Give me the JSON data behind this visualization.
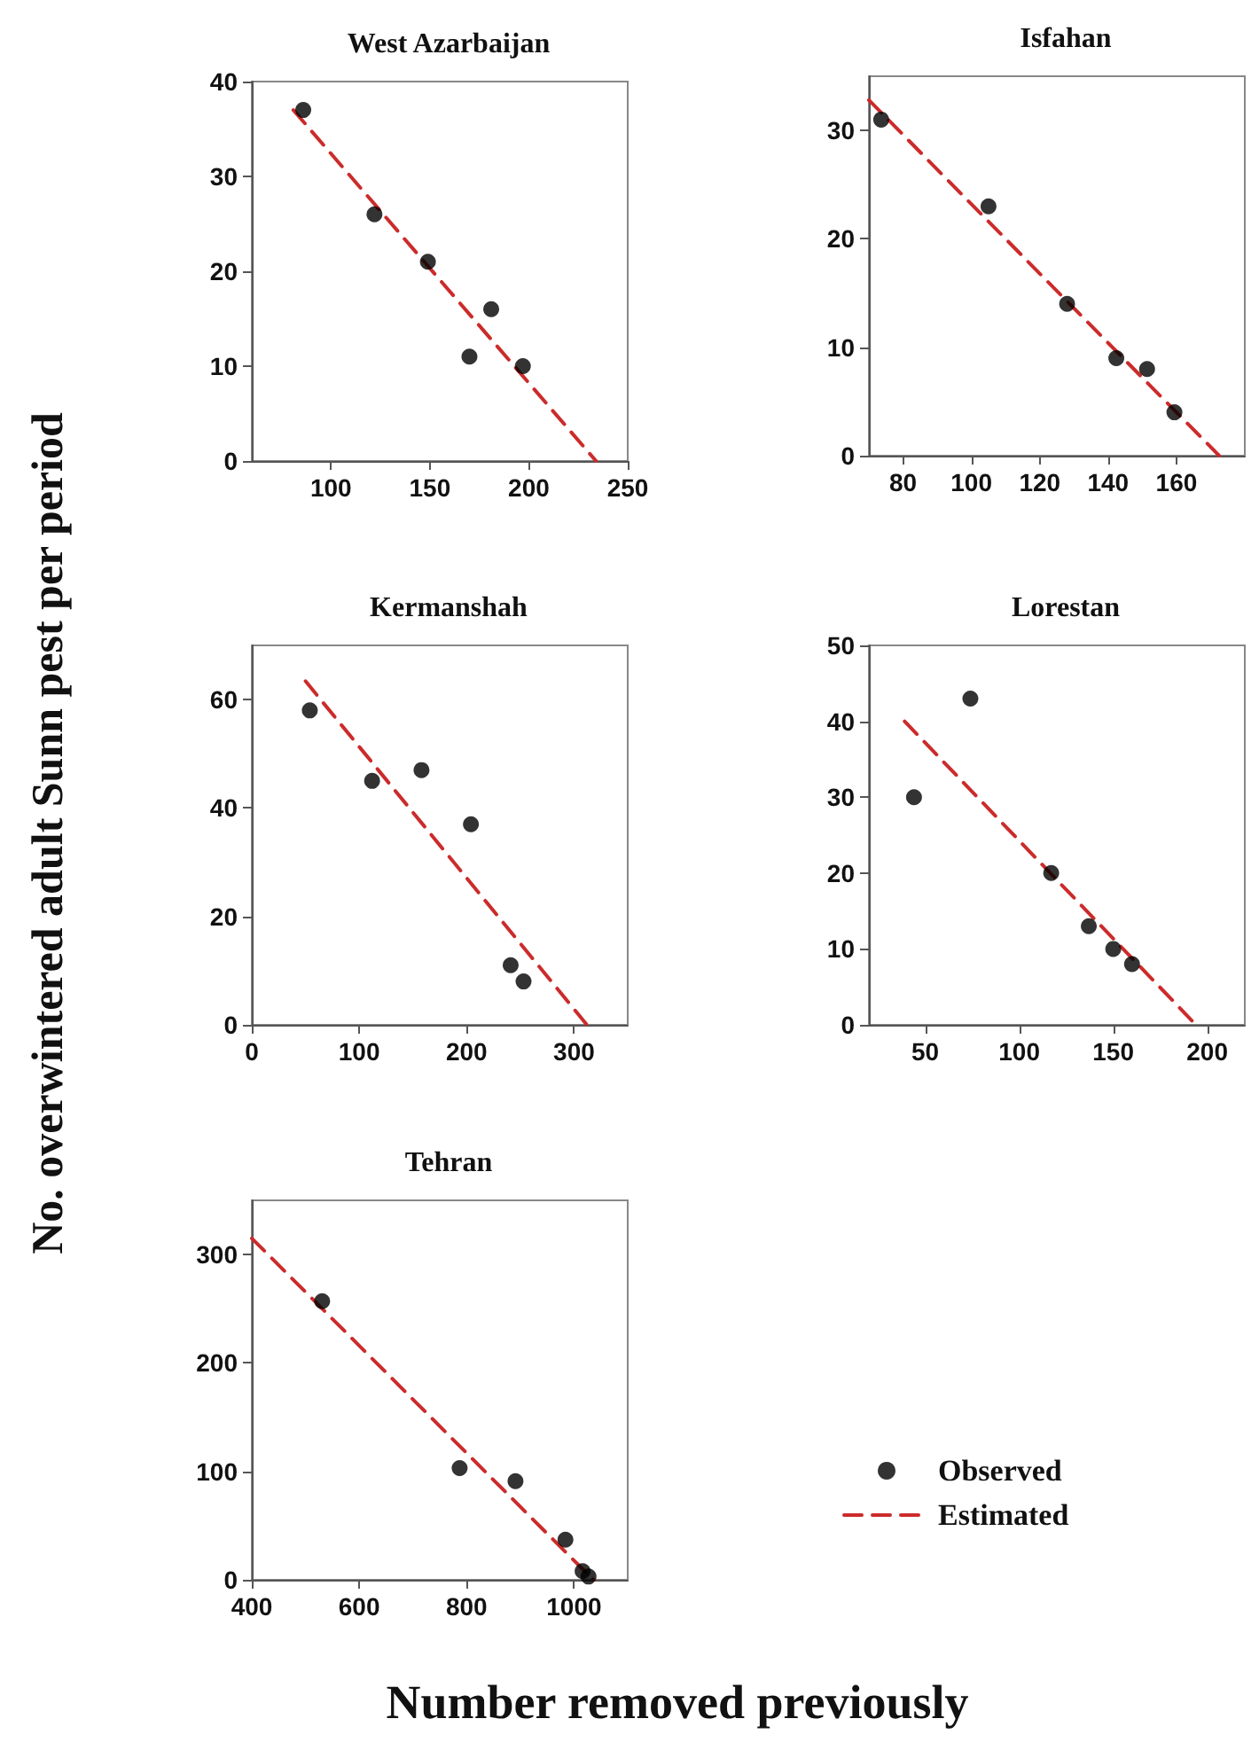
{
  "chart_data": [
    {
      "type": "scatter",
      "title": "West Azarbaijan",
      "xlim": [
        60,
        250
      ],
      "xticks": [
        100,
        150,
        200,
        250
      ],
      "ylim": [
        0,
        40
      ],
      "yticks": [
        0,
        10,
        20,
        30,
        40
      ],
      "series": [
        {
          "type": "scatter",
          "color": "#000000",
          "marker": "circle",
          "x": [
            86,
            122,
            149,
            170,
            181,
            197
          ],
          "values": [
            37,
            26,
            21,
            11,
            16,
            10
          ]
        },
        {
          "type": "line",
          "color": "#cc2b2b",
          "marker": "none",
          "line_style": "dashed",
          "x": [
            81,
            234
          ],
          "values": [
            37,
            0
          ]
        }
      ]
    },
    {
      "type": "scatter",
      "title": "Isfahan",
      "xlim": [
        70,
        180
      ],
      "xticks": [
        80,
        100,
        120,
        140,
        160
      ],
      "ylim": [
        0,
        35
      ],
      "yticks": [
        0,
        10,
        20,
        30
      ],
      "series": [
        {
          "type": "scatter",
          "color": "#000000",
          "marker": "circle",
          "x": [
            73.6,
            105,
            128,
            142.4,
            151.4,
            159.4
          ],
          "values": [
            31,
            23,
            14,
            9,
            8,
            4
          ]
        },
        {
          "type": "line",
          "color": "#cc2b2b",
          "marker": "none",
          "line_style": "dashed",
          "x": [
            70,
            172.5
          ],
          "values": [
            32.8,
            0
          ]
        }
      ]
    },
    {
      "type": "scatter",
      "title": "Kermanshah",
      "xlim": [
        0,
        350
      ],
      "xticks": [
        0,
        100,
        200,
        300
      ],
      "ylim": [
        0,
        70
      ],
      "yticks": [
        0,
        20,
        40,
        60
      ],
      "series": [
        {
          "type": "scatter",
          "color": "#000000",
          "marker": "circle",
          "x": [
            54,
            112,
            158,
            204,
            241,
            253
          ],
          "values": [
            58,
            45,
            47,
            37,
            11,
            8
          ]
        },
        {
          "type": "line",
          "color": "#cc2b2b",
          "marker": "none",
          "line_style": "dashed",
          "x": [
            50,
            312
          ],
          "values": [
            63.4,
            0
          ]
        }
      ]
    },
    {
      "type": "scatter",
      "title": "Lorestan",
      "xlim": [
        20,
        220
      ],
      "xticks": [
        50,
        100,
        150,
        200
      ],
      "ylim": [
        0,
        50
      ],
      "yticks": [
        0,
        10,
        20,
        30,
        40,
        50
      ],
      "series": [
        {
          "type": "scatter",
          "color": "#000000",
          "marker": "circle",
          "x": [
            44,
            74,
            117,
            137,
            150,
            160
          ],
          "values": [
            30,
            43,
            20,
            13,
            10,
            8
          ]
        },
        {
          "type": "line",
          "color": "#cc2b2b",
          "marker": "none",
          "line_style": "dashed",
          "x": [
            39,
            194
          ],
          "values": [
            40,
            0
          ]
        }
      ]
    },
    {
      "type": "scatter",
      "title": "Tehran",
      "xlabel": "Number removed previously",
      "ylabel": "No. overwintered adult Sunn pest per period",
      "legend": "right",
      "xlim": [
        400,
        1100
      ],
      "xticks": [
        400,
        600,
        800,
        1000
      ],
      "ylim": [
        0,
        350
      ],
      "yticks": [
        0,
        100,
        200,
        300
      ],
      "series": [
        {
          "type": "scatter",
          "name": "Observed",
          "color": "#000000",
          "marker": "circle",
          "x": [
            531,
            787,
            891,
            984,
            1016,
            1027
          ],
          "values": [
            257,
            103,
            91,
            37,
            8,
            3
          ]
        },
        {
          "type": "line",
          "name": "Estimated",
          "color": "#cc2b2b",
          "marker": "none",
          "line_style": "dashed",
          "x": [
            400,
            1036
          ],
          "values": [
            315,
            0
          ]
        }
      ]
    }
  ]
}
